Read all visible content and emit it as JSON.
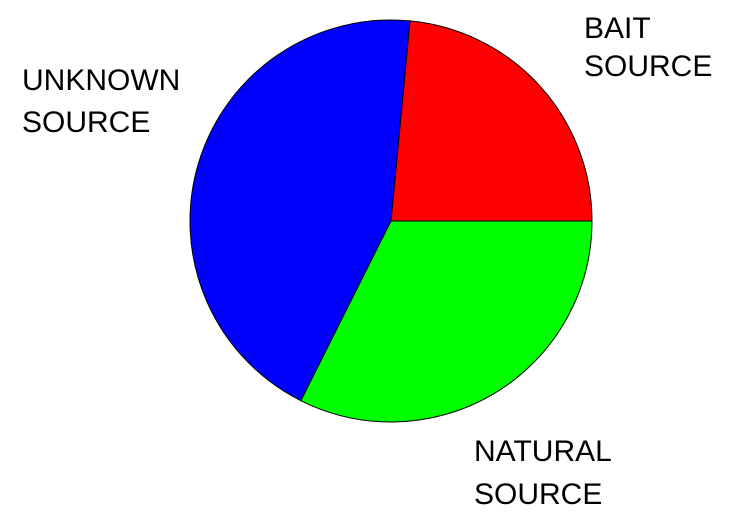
{
  "chart_data": {
    "type": "pie",
    "categories": [
      "BAIT SOURCE",
      "NATURAL SOURCE",
      "UNKNOWN SOURCE"
    ],
    "values": [
      23.5,
      44.1,
      32.4
    ],
    "colors": [
      "#ff0000",
      "#0000ff",
      "#00ff00"
    ],
    "start_angle_deg": 0,
    "direction": "counterclockwise",
    "labels": [
      {
        "lines": [
          "BAIT",
          "SOURCE"
        ]
      },
      {
        "lines": [
          "NATURAL",
          "SOURCE"
        ]
      },
      {
        "lines": [
          "UNKNOWN",
          "SOURCE"
        ]
      }
    ],
    "title": "",
    "legend": "none"
  }
}
